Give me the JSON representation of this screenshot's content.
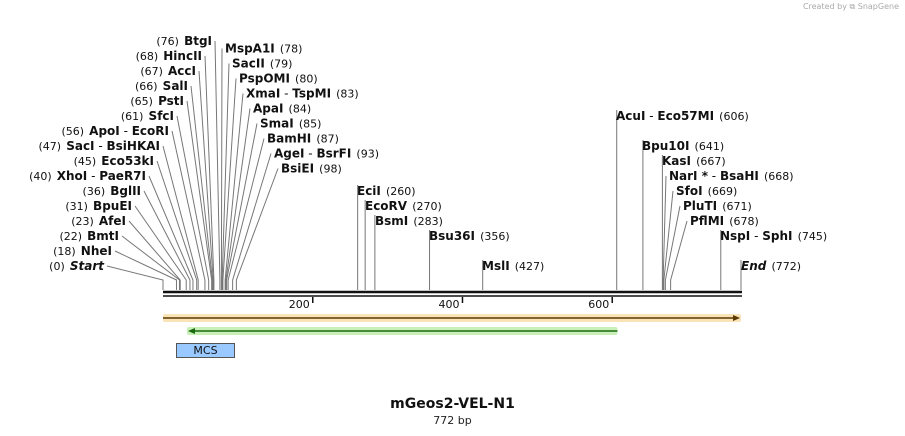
{
  "credit": "Created by ⧉ SnapGene",
  "title": "mGeos2-VEL-N1",
  "length_label": "772 bp",
  "sequence_length": 772,
  "features": {
    "mcs": {
      "name": "MCS",
      "start": 18,
      "end": 98,
      "color": "#99c9ff"
    },
    "orf_outer": {
      "start": 0,
      "end": 772,
      "direction": "forward",
      "color": "#f0a020"
    },
    "orf_inner": {
      "start": 32,
      "end": 607,
      "direction": "reverse",
      "color": "#33aa22"
    }
  },
  "ruler_ticks": [
    {
      "value": 200,
      "label": "200"
    },
    {
      "value": 400,
      "label": "400"
    },
    {
      "value": 600,
      "label": "600"
    }
  ],
  "sites": [
    {
      "names": [
        "BtgI"
      ],
      "pos": 76,
      "pos_label": "(76)",
      "side": "right"
    },
    {
      "names": [
        "HincII"
      ],
      "pos": 68,
      "pos_label": "(68)",
      "side": "right"
    },
    {
      "names": [
        "AccI"
      ],
      "pos": 67,
      "pos_label": "(67)",
      "side": "right"
    },
    {
      "names": [
        "SalI"
      ],
      "pos": 66,
      "pos_label": "(66)",
      "side": "right"
    },
    {
      "names": [
        "PstI"
      ],
      "pos": 65,
      "pos_label": "(65)",
      "side": "right"
    },
    {
      "names": [
        "SfcI"
      ],
      "pos": 61,
      "pos_label": "(61)",
      "side": "right"
    },
    {
      "names": [
        "ApoI",
        "EcoRI"
      ],
      "pos": 56,
      "pos_label": "(56)",
      "side": "right"
    },
    {
      "names": [
        "SacI",
        "BsiHKAI"
      ],
      "pos": 47,
      "pos_label": "(47)",
      "side": "right"
    },
    {
      "names": [
        "Eco53kI"
      ],
      "pos": 45,
      "pos_label": "(45)",
      "side": "right"
    },
    {
      "names": [
        "XhoI",
        "PaeR7I"
      ],
      "pos": 40,
      "pos_label": "(40)",
      "side": "right"
    },
    {
      "names": [
        "BglII"
      ],
      "pos": 36,
      "pos_label": "(36)",
      "side": "right"
    },
    {
      "names": [
        "BpuEI"
      ],
      "pos": 31,
      "pos_label": "(31)",
      "side": "right"
    },
    {
      "names": [
        "AfeI"
      ],
      "pos": 23,
      "pos_label": "(23)",
      "side": "right"
    },
    {
      "names": [
        "BmtI"
      ],
      "pos": 22,
      "pos_label": "(22)",
      "side": "right"
    },
    {
      "names": [
        "NheI"
      ],
      "pos": 18,
      "pos_label": "(18)",
      "side": "right"
    },
    {
      "names": [
        "Start"
      ],
      "pos": 0,
      "pos_label": "(0)",
      "side": "right",
      "italic": true
    },
    {
      "names": [
        "MspA1I"
      ],
      "pos": 78,
      "pos_label": "(78)",
      "side": "left"
    },
    {
      "names": [
        "SacII"
      ],
      "pos": 79,
      "pos_label": "(79)",
      "side": "left"
    },
    {
      "names": [
        "PspOMI"
      ],
      "pos": 80,
      "pos_label": "(80)",
      "side": "left"
    },
    {
      "names": [
        "XmaI",
        "TspMI"
      ],
      "pos": 83,
      "pos_label": "(83)",
      "side": "left"
    },
    {
      "names": [
        "ApaI"
      ],
      "pos": 84,
      "pos_label": "(84)",
      "side": "left"
    },
    {
      "names": [
        "SmaI"
      ],
      "pos": 85,
      "pos_label": "(85)",
      "side": "left"
    },
    {
      "names": [
        "BamHI"
      ],
      "pos": 87,
      "pos_label": "(87)",
      "side": "left"
    },
    {
      "names": [
        "AgeI",
        "BsrFI"
      ],
      "pos": 93,
      "pos_label": "(93)",
      "side": "left"
    },
    {
      "names": [
        "BsiEI"
      ],
      "pos": 98,
      "pos_label": "(98)",
      "side": "left"
    },
    {
      "names": [
        "EciI"
      ],
      "pos": 260,
      "pos_label": "(260)",
      "side": "left"
    },
    {
      "names": [
        "EcoRV"
      ],
      "pos": 270,
      "pos_label": "(270)",
      "side": "left"
    },
    {
      "names": [
        "BsmI"
      ],
      "pos": 283,
      "pos_label": "(283)",
      "side": "left"
    },
    {
      "names": [
        "Bsu36I"
      ],
      "pos": 356,
      "pos_label": "(356)",
      "side": "left"
    },
    {
      "names": [
        "MslI"
      ],
      "pos": 427,
      "pos_label": "(427)",
      "side": "left"
    },
    {
      "names": [
        "AcuI",
        "Eco57MI"
      ],
      "pos": 606,
      "pos_label": "(606)",
      "side": "left"
    },
    {
      "names": [
        "Bpu10I"
      ],
      "pos": 641,
      "pos_label": "(641)",
      "side": "left"
    },
    {
      "names": [
        "KasI"
      ],
      "pos": 667,
      "pos_label": "(667)",
      "side": "left"
    },
    {
      "names": [
        "NarI *",
        "BsaHI"
      ],
      "pos": 668,
      "pos_label": "(668)",
      "side": "left"
    },
    {
      "names": [
        "SfoI"
      ],
      "pos": 669,
      "pos_label": "(669)",
      "side": "left"
    },
    {
      "names": [
        "PluTI"
      ],
      "pos": 671,
      "pos_label": "(671)",
      "side": "left"
    },
    {
      "names": [
        "PflMI"
      ],
      "pos": 678,
      "pos_label": "(678)",
      "side": "left"
    },
    {
      "names": [
        "NspI",
        "SphI"
      ],
      "pos": 745,
      "pos_label": "(745)",
      "side": "left"
    },
    {
      "names": [
        "End"
      ],
      "pos": 772,
      "pos_label": "(772)",
      "side": "left",
      "italic": true
    }
  ]
}
